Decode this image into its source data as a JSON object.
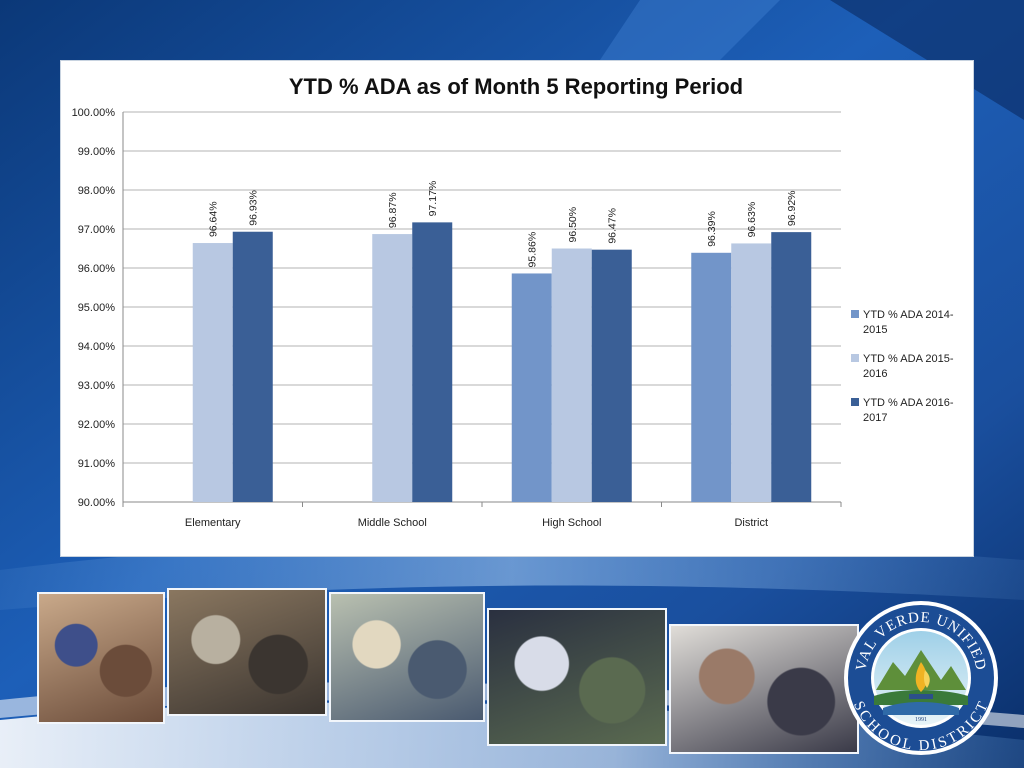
{
  "slide": {
    "background_colors": {
      "deep": "#0b3878",
      "mid": "#1d5fb8",
      "light": "#5aa0e0",
      "swoosh": "#e9f1fa"
    }
  },
  "chart_data": {
    "type": "bar",
    "title": "YTD % ADA as of Month 5 Reporting Period",
    "categories": [
      "Elementary",
      "Middle School",
      "High School",
      "District"
    ],
    "series": [
      {
        "name": "YTD % ADA 2014-2015",
        "legend_lines": [
          "YTD % ADA 2014-",
          "2015"
        ],
        "color": "#7295c9",
        "values": [
          null,
          null,
          95.86,
          96.39
        ],
        "labels": [
          "",
          "",
          "95.86%",
          "96.39%"
        ]
      },
      {
        "name": "YTD % ADA 2015-2016",
        "legend_lines": [
          "YTD % ADA 2015-",
          "2016"
        ],
        "color": "#b8c8e2",
        "values": [
          96.64,
          96.87,
          96.5,
          96.63
        ],
        "labels": [
          "96.64%",
          "96.87%",
          "96.50%",
          "96.63%"
        ]
      },
      {
        "name": "YTD % ADA 2016-2017",
        "legend_lines": [
          "YTD % ADA 2016-",
          "2017"
        ],
        "color": "#3a5f96",
        "values": [
          96.93,
          97.17,
          96.47,
          96.92
        ],
        "labels": [
          "96.93%",
          "97.17%",
          "96.47%",
          "96.92%"
        ]
      }
    ],
    "ylim": [
      90,
      100
    ],
    "yticks": [
      "90.00%",
      "91.00%",
      "92.00%",
      "93.00%",
      "94.00%",
      "95.00%",
      "96.00%",
      "97.00%",
      "98.00%",
      "99.00%",
      "100.00%"
    ],
    "grid": true,
    "legend_position": "right",
    "xlabel": "",
    "ylabel": ""
  },
  "photos": [
    {
      "name": "photo-classroom-students",
      "colors": [
        "#c9a98a",
        "#6b4c3a",
        "#3e4f8a"
      ]
    },
    {
      "name": "photo-computer-lab",
      "colors": [
        "#8a7760",
        "#3b3530",
        "#b8b0a0"
      ]
    },
    {
      "name": "photo-science-class",
      "colors": [
        "#b9c0b0",
        "#4a5a70",
        "#e2d8c0"
      ]
    },
    {
      "name": "photo-football-players",
      "colors": [
        "#2a3040",
        "#5a6a50",
        "#d8dce8"
      ]
    },
    {
      "name": "photo-teacher-student",
      "colors": [
        "#e0ddd8",
        "#3a3a48",
        "#9a7a68"
      ]
    }
  ],
  "seal": {
    "top_text": "VAL VERDE UNIFIED",
    "bottom_text": "SCHOOL DISTRICT",
    "year": "1991",
    "ring_color": "#1c4d95",
    "flame_color": "#f0b323"
  }
}
